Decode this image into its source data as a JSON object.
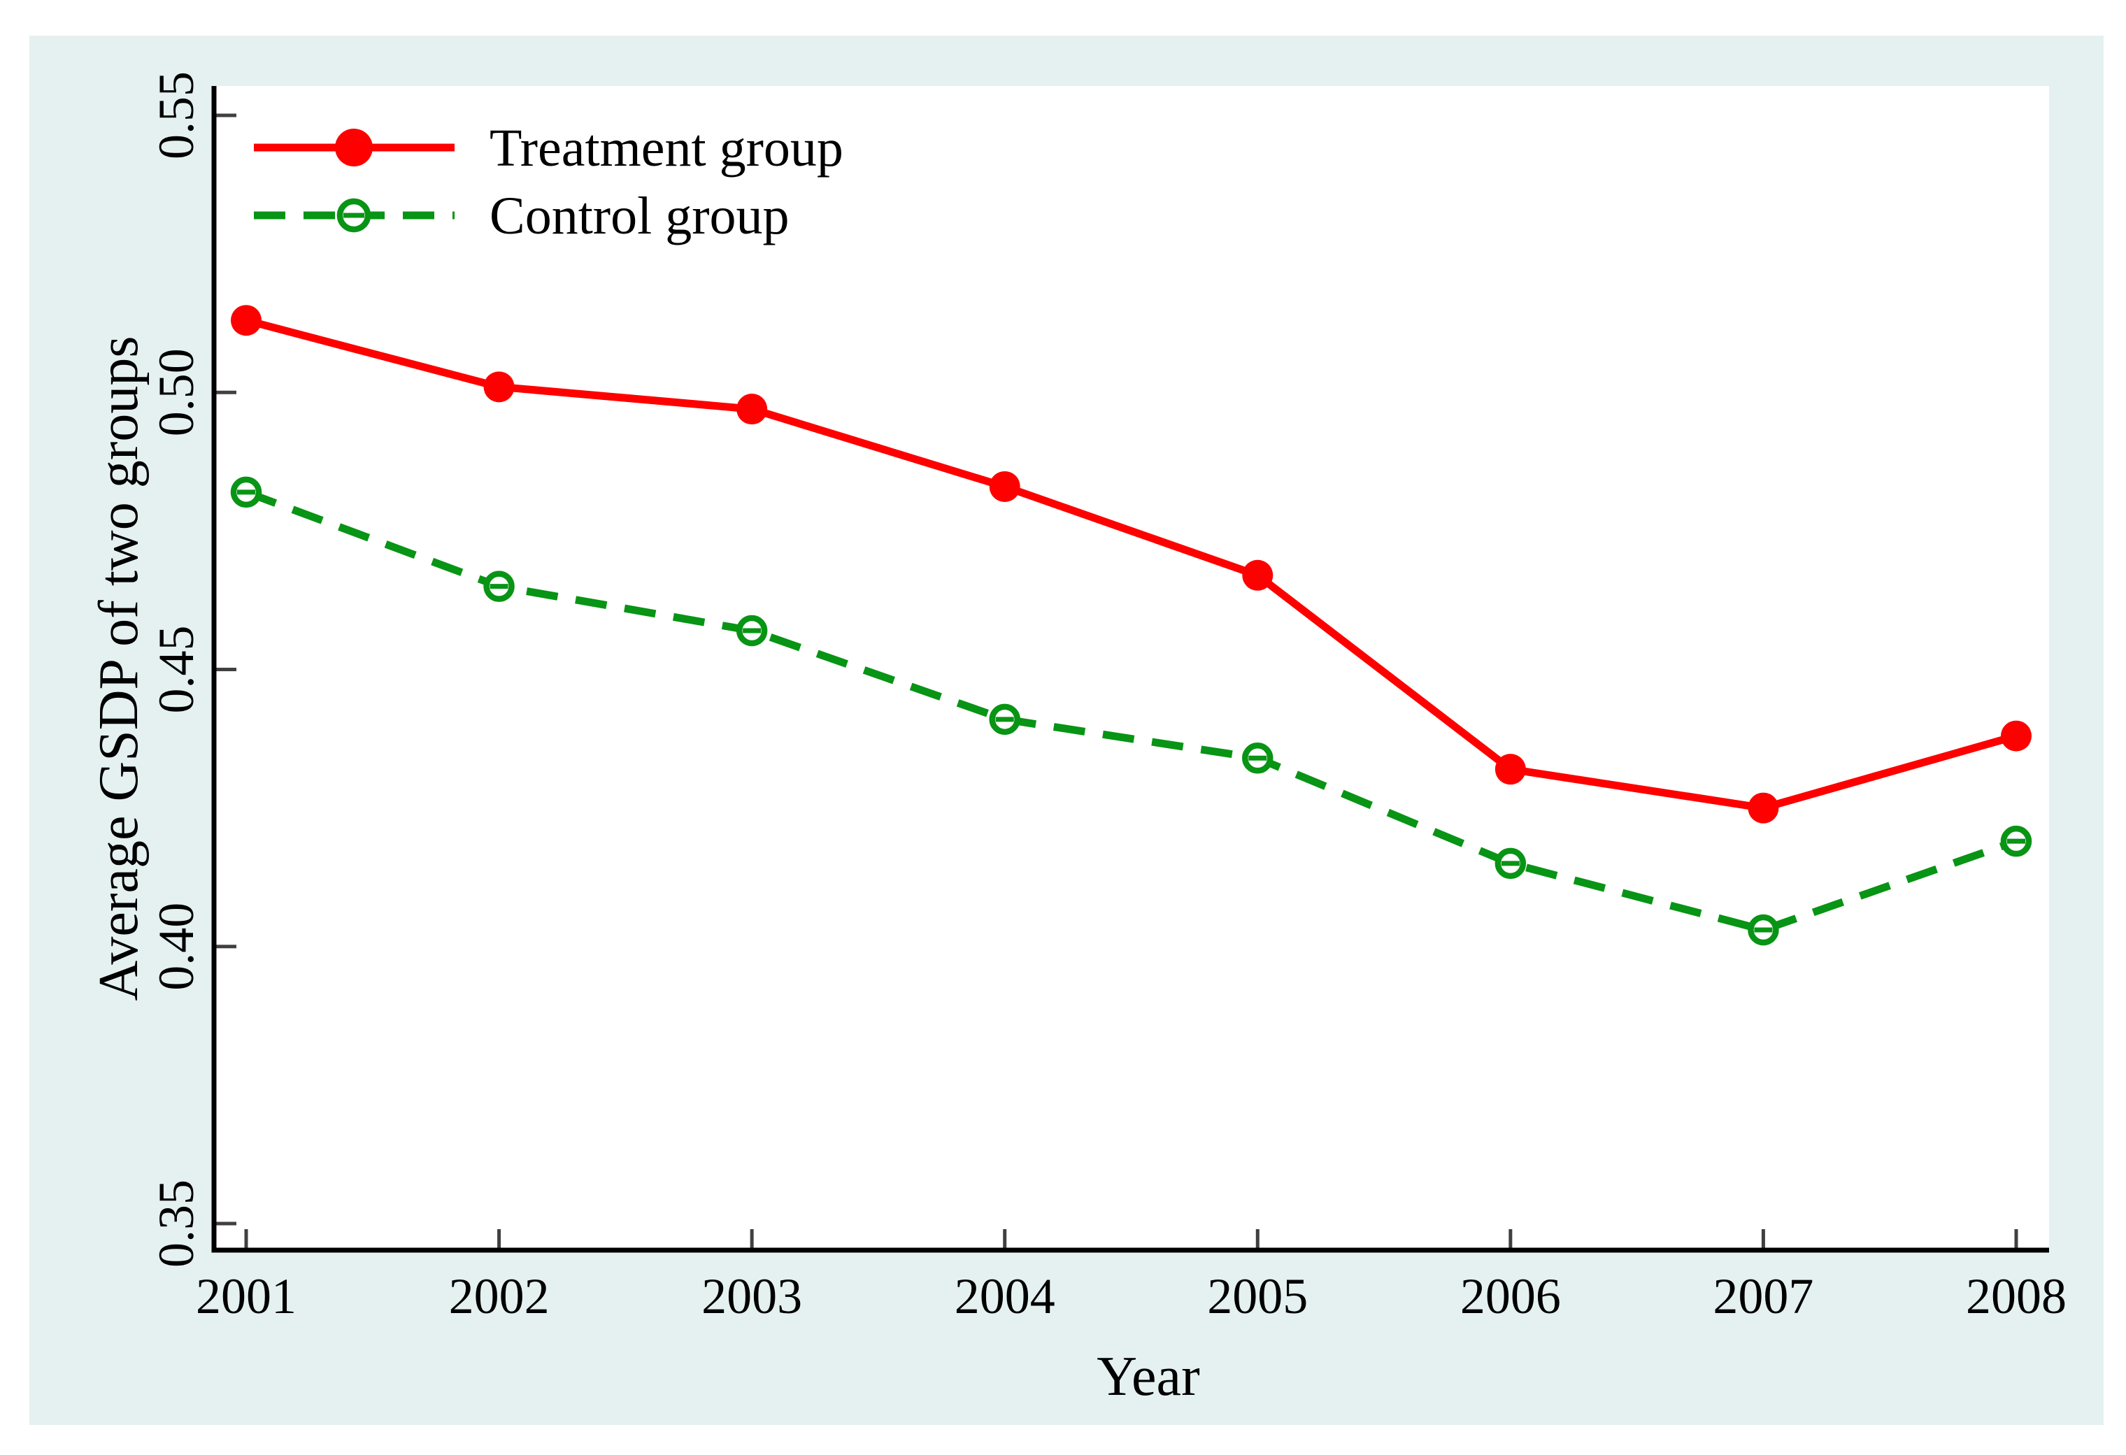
{
  "chart_data": {
    "type": "line",
    "title": "",
    "xlabel": "Year",
    "ylabel": "Average GSDP of two groups",
    "x": [
      2001,
      2002,
      2003,
      2004,
      2005,
      2006,
      2007,
      2008
    ],
    "xtick_labels": [
      "2001",
      "2002",
      "2003",
      "2004",
      "2005",
      "2006",
      "2007",
      "2008"
    ],
    "yticks": [
      0.55,
      0.5,
      0.45,
      0.4,
      0.35
    ],
    "ytick_labels": [
      "0.55",
      "0.50",
      "0.45",
      "0.40",
      "0.35"
    ],
    "ylim": [
      0.35,
      0.55
    ],
    "xlim": [
      2000.87,
      2008.13
    ],
    "grid": false,
    "legend_position": "top-left",
    "series": [
      {
        "name": "Treatment group",
        "color": "#fe0000",
        "line_style": "solid",
        "marker": "filled-circle",
        "values": [
          0.513,
          0.501,
          0.497,
          0.483,
          0.467,
          0.432,
          0.425,
          0.438
        ]
      },
      {
        "name": "Control group",
        "color": "#089414",
        "line_style": "dashed",
        "marker": "open-circle",
        "values": [
          0.482,
          0.465,
          0.457,
          0.441,
          0.434,
          0.415,
          0.403,
          0.419
        ]
      }
    ]
  },
  "colors": {
    "page_background": "#ffffff",
    "chart_background": "#e5f1f1",
    "plot_background": "#ffffff",
    "axis_line": "#000000",
    "tick_mark": "#404040",
    "text": "#000000"
  }
}
